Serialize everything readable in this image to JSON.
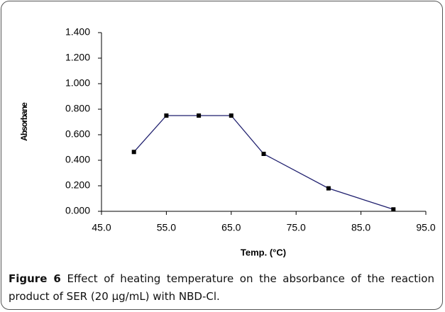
{
  "chart_data": {
    "type": "line",
    "y_label": "Absorbane",
    "x_label": "Temp. (°C)",
    "x": [
      50,
      55,
      60,
      65,
      70,
      80,
      90
    ],
    "series": [
      {
        "color": "#1f1f6e",
        "values": [
          0.465,
          0.75,
          0.75,
          0.75,
          0.45,
          0.18,
          0.015
        ]
      }
    ],
    "xlim": [
      45,
      95
    ],
    "xticks": [
      {
        "value": 45,
        "label": "45.0"
      },
      {
        "value": 55,
        "label": "55.0"
      },
      {
        "value": 65,
        "label": "65.0"
      },
      {
        "value": 75,
        "label": "75.0"
      },
      {
        "value": 85,
        "label": "85.0"
      },
      {
        "value": 95,
        "label": "95.0"
      }
    ],
    "ylim": [
      0,
      1.4
    ],
    "yticks": [
      {
        "value": 0,
        "label": "0.000"
      },
      {
        "value": 0.2,
        "label": "0.200"
      },
      {
        "value": 0.4,
        "label": "0.400"
      },
      {
        "value": 0.6,
        "label": "0.600"
      },
      {
        "value": 0.8,
        "label": "0.800"
      },
      {
        "value": 1.0,
        "label": "1.000"
      },
      {
        "value": 1.2,
        "label": "1.200"
      },
      {
        "value": 1.4,
        "label": "1.400"
      }
    ],
    "grid": false
  },
  "caption": {
    "label": "Figure 6",
    "text": "Effect of heating temperature on the absorbance of the reaction product of SER (20 µg/mL) with NBD-Cl."
  }
}
